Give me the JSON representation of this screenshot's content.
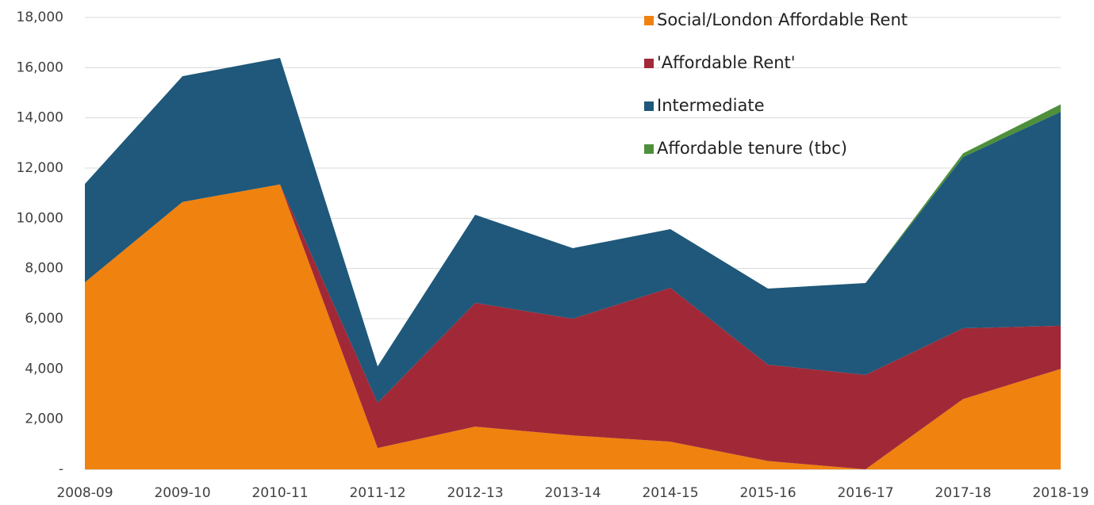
{
  "chart_data": {
    "type": "stacked_area",
    "categories": [
      "2008-09",
      "2009-10",
      "2010-11",
      "2011-12",
      "2012-13",
      "2013-14",
      "2014-15",
      "2015-16",
      "2016-17",
      "2017-18",
      "2018-19"
    ],
    "series": [
      {
        "name": "Social/London Affordable Rent",
        "color": "#f0820f",
        "values": [
          7450,
          10650,
          11350,
          850,
          1700,
          1350,
          1100,
          330,
          0,
          2800,
          4000
        ]
      },
      {
        "name": "'Affordable Rent'",
        "color": "#a12937",
        "values": [
          0,
          0,
          0,
          1800,
          4930,
          4650,
          6130,
          3840,
          3760,
          2820,
          1720
        ]
      },
      {
        "name": "Intermediate",
        "color": "#1f587a",
        "values": [
          3920,
          5010,
          5040,
          1450,
          3510,
          2810,
          2340,
          3030,
          3660,
          6820,
          8520
        ]
      },
      {
        "name": "Affordable tenure (tbc)",
        "color": "#4e8f3c",
        "values": [
          0,
          0,
          0,
          0,
          0,
          0,
          0,
          0,
          0,
          150,
          300
        ]
      }
    ],
    "ylim": [
      0,
      18000
    ],
    "yticks": [
      {
        "value": 0,
        "label": "-"
      },
      {
        "value": 2000,
        "label": "2,000"
      },
      {
        "value": 4000,
        "label": "4,000"
      },
      {
        "value": 6000,
        "label": "6,000"
      },
      {
        "value": 8000,
        "label": "8,000"
      },
      {
        "value": 10000,
        "label": "10,000"
      },
      {
        "value": 12000,
        "label": "12,000"
      },
      {
        "value": 14000,
        "label": "14,000"
      },
      {
        "value": 16000,
        "label": "16,000"
      },
      {
        "value": 18000,
        "label": "18,000"
      }
    ],
    "grid": true,
    "legend": "top-right"
  }
}
